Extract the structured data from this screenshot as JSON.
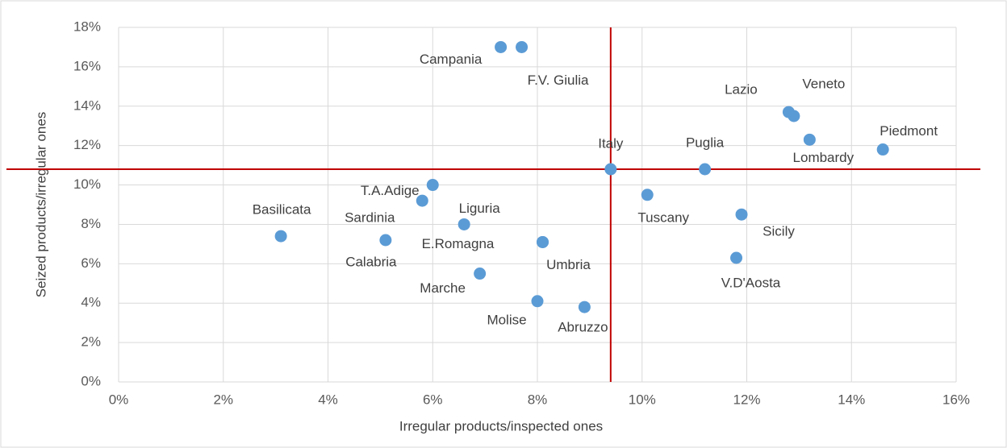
{
  "chart_data": {
    "type": "scatter",
    "x_label": "Irregular products/inspected ones",
    "y_label": "Seized products/irregular ones",
    "names": [
      "Campania",
      "F.V. Giulia",
      "Lazio",
      "Veneto",
      "Lombardy",
      "Piedmont",
      "Puglia",
      "Italy",
      "Tuscany",
      "Sicily",
      "V.D'Aosta",
      "T.A.Adige",
      "Sardinia",
      "Liguria",
      "E.Romagna",
      "Umbria",
      "Marche",
      "Molise",
      "Abruzzo",
      "Basilicata",
      "Calabria"
    ],
    "x": [
      7.3,
      7.7,
      12.8,
      12.9,
      13.2,
      14.6,
      11.2,
      9.4,
      10.1,
      11.9,
      11.8,
      6.0,
      5.8,
      6.6,
      8.1,
      8.1,
      6.9,
      8.0,
      8.9,
      3.1,
      5.1
    ],
    "y": [
      17.0,
      17.0,
      13.7,
      13.5,
      12.3,
      11.8,
      10.8,
      10.8,
      9.5,
      8.5,
      6.3,
      10.0,
      9.2,
      8.0,
      7.1,
      7.1,
      5.5,
      4.1,
      3.8,
      7.4,
      7.2
    ],
    "color": "#5b9bd5",
    "reference_lines": {
      "x": 9.4,
      "y": 10.8,
      "color": "#c00000"
    },
    "xlim": [
      0,
      16
    ],
    "xticks": [
      {
        "value": 0,
        "label": "0%"
      },
      {
        "value": 2,
        "label": "2%"
      },
      {
        "value": 4,
        "label": "4%"
      },
      {
        "value": 6,
        "label": "6%"
      },
      {
        "value": 8,
        "label": "8%"
      },
      {
        "value": 10,
        "label": "10%"
      },
      {
        "value": 12,
        "label": "12%"
      },
      {
        "value": 14,
        "label": "14%"
      },
      {
        "value": 16,
        "label": "16%"
      }
    ],
    "ylim": [
      0,
      18
    ],
    "yticks": [
      {
        "value": 0,
        "label": "0%"
      },
      {
        "value": 2,
        "label": "2%"
      },
      {
        "value": 4,
        "label": "4%"
      },
      {
        "value": 6,
        "label": "6%"
      },
      {
        "value": 8,
        "label": "8%"
      },
      {
        "value": 10,
        "label": "10%"
      },
      {
        "value": 12,
        "label": "12%"
      },
      {
        "value": 14,
        "label": "14%"
      },
      {
        "value": 16,
        "label": "16%"
      },
      {
        "value": 18,
        "label": "18%"
      }
    ],
    "grid": true
  }
}
